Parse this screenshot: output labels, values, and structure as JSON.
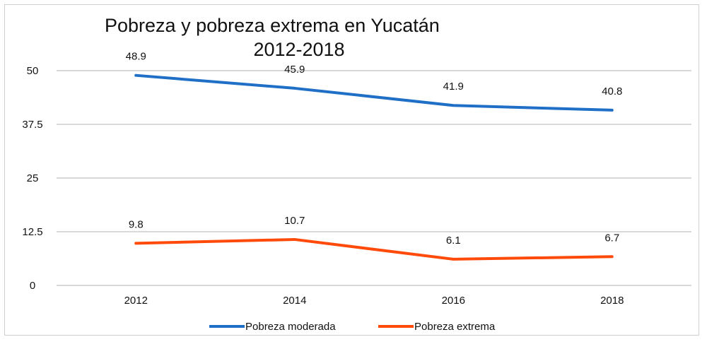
{
  "chart_data": {
    "type": "line",
    "title": "Pobreza y pobreza extrema en Yucatán",
    "subtitle": "2012-2018",
    "categories": [
      "2012",
      "2014",
      "2016",
      "2018"
    ],
    "series": [
      {
        "name": "Pobreza moderada",
        "values": [
          48.9,
          45.9,
          41.9,
          40.8
        ],
        "color": "#1f6fc6",
        "labels": [
          "48.9",
          "45.9",
          "41.9",
          "40.8"
        ]
      },
      {
        "name": "Pobreza extrema",
        "values": [
          9.8,
          10.7,
          6.1,
          6.7
        ],
        "color": "#ff4a0a",
        "labels": [
          "9.8",
          "10.7",
          "6.1",
          "6.7"
        ]
      }
    ],
    "yticks": [
      "0",
      "12.5",
      "25",
      "37.5",
      "50"
    ],
    "ytick_values": [
      0,
      12.5,
      25,
      37.5,
      50
    ],
    "ylim": [
      0,
      50
    ],
    "xlabel": "",
    "ylabel": "",
    "grid": true,
    "legend": "bottom"
  }
}
